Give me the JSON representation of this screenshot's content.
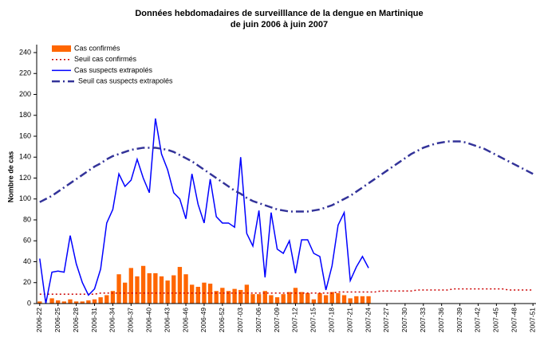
{
  "chart_data": {
    "type": "combo",
    "title": "Données hebdomadaires de surveilllance de la dengue en Martinique",
    "subtitle": "de juin 2006 à juin 2007",
    "y_label": "Nombre de cas",
    "ylim": [
      0,
      240
    ],
    "yticks": [
      0,
      20,
      40,
      60,
      80,
      100,
      120,
      140,
      160,
      180,
      200,
      220,
      240
    ],
    "grid": false,
    "legend": "top-left",
    "categories": [
      "2006-22",
      null,
      null,
      "2006-25",
      null,
      null,
      "2006-28",
      null,
      null,
      "2006-31",
      null,
      null,
      "2006-34",
      null,
      null,
      "2006-37",
      null,
      null,
      "2006-40",
      null,
      null,
      "2006-43",
      null,
      null,
      "2006-46",
      null,
      null,
      "2006-49",
      null,
      null,
      "2006-52",
      null,
      null,
      "2007-03",
      null,
      null,
      "2007-06",
      null,
      null,
      "2007-09",
      null,
      null,
      "2007-12",
      null,
      null,
      "2007-15",
      null,
      null,
      "2007-18",
      null,
      null,
      "2007-21",
      null,
      null,
      "2007-24",
      null,
      null,
      "2007-27",
      null,
      null,
      "2007-30",
      null,
      null,
      "2007-33",
      null,
      null,
      "2007-36",
      null,
      null,
      "2007-39",
      null,
      null,
      "2007-42",
      null,
      null,
      "2007-45",
      null,
      null,
      "2007-48",
      null,
      null,
      "2007-51"
    ],
    "series": [
      {
        "name": "Cas confirmés",
        "kind": "bar",
        "color": "#ff6600",
        "values": [
          2,
          0,
          5,
          3,
          2,
          4,
          2,
          2,
          3,
          4,
          6,
          8,
          12,
          28,
          20,
          34,
          26,
          36,
          29,
          29,
          26,
          22,
          27,
          35,
          28,
          18,
          16,
          20,
          19,
          12,
          15,
          12,
          14,
          13,
          18,
          9,
          9,
          12,
          8,
          6,
          9,
          11,
          15,
          11,
          10,
          4,
          10,
          8,
          11,
          10,
          8,
          5,
          7,
          7,
          7,
          null,
          null,
          null,
          null,
          null,
          null,
          null,
          null,
          null,
          null,
          null,
          null,
          null,
          null,
          null,
          null,
          null,
          null,
          null,
          null,
          null,
          null,
          null,
          null,
          null,
          null,
          null
        ]
      },
      {
        "name": "Seuil cas confirmés",
        "kind": "line",
        "dash": "dot",
        "color": "#cc0000",
        "values": [
          9,
          9,
          9,
          9,
          9,
          9,
          9,
          9,
          9,
          9,
          10,
          10,
          10,
          10,
          10,
          10,
          10,
          10,
          10,
          10,
          10,
          10,
          10,
          10,
          10,
          10,
          10,
          10,
          10,
          10,
          10,
          10,
          10,
          10,
          10,
          10,
          10,
          10,
          10,
          10,
          10,
          10,
          10,
          10,
          10,
          10,
          10,
          10,
          10,
          11,
          11,
          11,
          11,
          11,
          11,
          11,
          12,
          12,
          12,
          12,
          12,
          12,
          13,
          13,
          13,
          13,
          13,
          13,
          14,
          14,
          14,
          14,
          14,
          14,
          14,
          14,
          14,
          13,
          13,
          13,
          13,
          13
        ]
      },
      {
        "name": "Cas suspects extrapolés",
        "kind": "line",
        "dash": "solid",
        "color": "#0000ff",
        "values": [
          43,
          0,
          30,
          31,
          30,
          65,
          38,
          20,
          8,
          14,
          33,
          77,
          90,
          124,
          112,
          118,
          138,
          120,
          106,
          177,
          143,
          128,
          106,
          100,
          81,
          124,
          95,
          77,
          119,
          83,
          77,
          77,
          73,
          140,
          67,
          55,
          89,
          25,
          87,
          52,
          48,
          60,
          29,
          61,
          61,
          48,
          45,
          13,
          36,
          75,
          87,
          22,
          35,
          45,
          34,
          null,
          null,
          null,
          null,
          null,
          null,
          null,
          null,
          null,
          null,
          null,
          null,
          null,
          null,
          null,
          null,
          null,
          null,
          null,
          null,
          null,
          null,
          null,
          null,
          null,
          null,
          null
        ]
      },
      {
        "name": "Seuil cas suspects extrapolés",
        "kind": "line",
        "dash": "dash-dot",
        "color": "#333399",
        "values": [
          97,
          100,
          103,
          107,
          111,
          115,
          119,
          123,
          127,
          131,
          134,
          138,
          141,
          143,
          145,
          147,
          148,
          149,
          149,
          149,
          148,
          147,
          145,
          142,
          139,
          136,
          132,
          128,
          124,
          120,
          116,
          112,
          108,
          105,
          101,
          98,
          96,
          94,
          92,
          90,
          89,
          88,
          88,
          88,
          88,
          89,
          90,
          92,
          94,
          97,
          100,
          103,
          107,
          111,
          115,
          119,
          123,
          127,
          131,
          135,
          139,
          143,
          146,
          149,
          151,
          153,
          154,
          155,
          155,
          155,
          154,
          152,
          150,
          148,
          145,
          142,
          139,
          136,
          133,
          130,
          127,
          124
        ]
      }
    ]
  }
}
